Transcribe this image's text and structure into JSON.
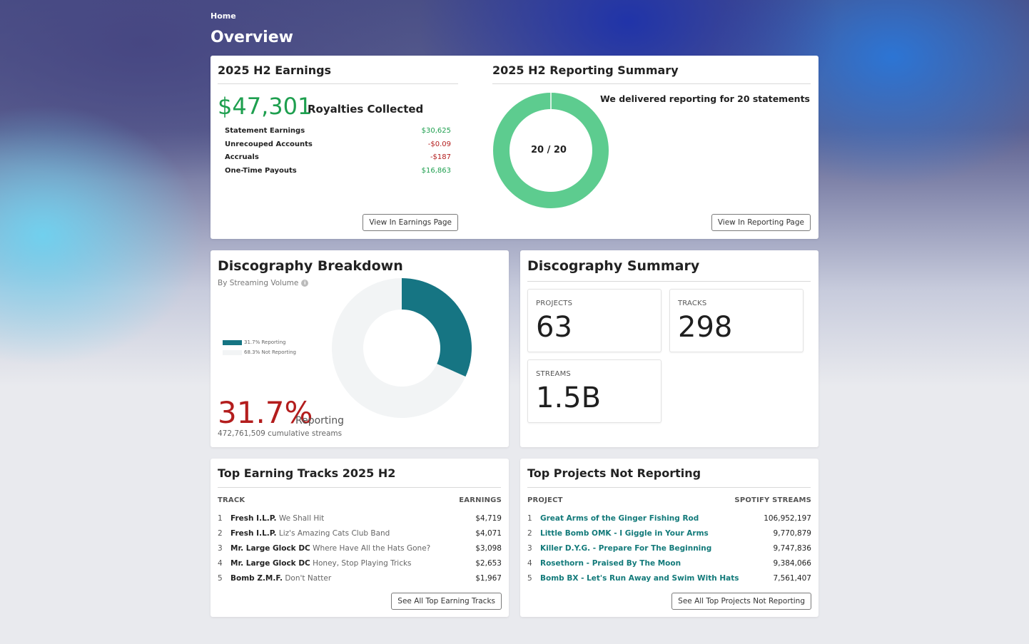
{
  "breadcrumb": "Home",
  "page_title": "Overview",
  "earnings": {
    "title": "2025 H2 Earnings",
    "total": "$47,301",
    "total_label": "Royalties Collected",
    "rows": [
      {
        "label": "Statement Earnings",
        "value": "$30,625",
        "tone": "pos"
      },
      {
        "label": "Unrecouped Accounts",
        "value": "-$0.09",
        "tone": "neg"
      },
      {
        "label": "Accruals",
        "value": "-$187",
        "tone": "neg"
      },
      {
        "label": "One-Time Payouts",
        "value": "$16,863",
        "tone": "pos"
      }
    ],
    "button": "View In Earnings Page"
  },
  "reporting": {
    "title": "2025 H2 Reporting Summary",
    "text_prefix": "We delivered reporting for ",
    "text_bold": "20 statements",
    "donut_label": "20 / 20",
    "delivered": 20,
    "total": 20,
    "color": "#5dcc8f",
    "button": "View In Reporting Page"
  },
  "breakdown": {
    "title": "Discography Breakdown",
    "subtitle": "By Streaming Volume",
    "legend": [
      {
        "label": "31.7% Reporting",
        "color": "#167583"
      },
      {
        "label": "68.3% Not Reporting",
        "color": "#f2f4f5"
      }
    ],
    "reporting_fraction": 0.317,
    "percent": "31.7%",
    "percent_label": "Reporting",
    "cumulative": "472,761,509 cumulative streams"
  },
  "summary": {
    "title": "Discography Summary",
    "stats": [
      {
        "label": "PROJECTS",
        "value": "63"
      },
      {
        "label": "TRACKS",
        "value": "298"
      },
      {
        "label": "STREAMS",
        "value": "1.5B"
      }
    ]
  },
  "top_tracks": {
    "title": "Top Earning Tracks 2025 H2",
    "col_left": "TRACK",
    "col_right": "EARNINGS",
    "rows": [
      {
        "n": "1",
        "artist": "Fresh I.L.P.",
        "title": "We Shall Hit",
        "value": "$4,719"
      },
      {
        "n": "2",
        "artist": "Fresh I.L.P.",
        "title": "Liz's Amazing Cats Club Band",
        "value": "$4,071"
      },
      {
        "n": "3",
        "artist": "Mr. Large Glock DC",
        "title": "Where Have All the Hats Gone?",
        "value": "$3,098"
      },
      {
        "n": "4",
        "artist": "Mr. Large Glock DC",
        "title": "Honey, Stop Playing Tricks",
        "value": "$2,653"
      },
      {
        "n": "5",
        "artist": "Bomb Z.M.F.",
        "title": "Don't Natter",
        "value": "$1,967"
      }
    ],
    "button": "See All Top Earning Tracks"
  },
  "top_projects": {
    "title": "Top Projects Not Reporting",
    "col_left": "PROJECT",
    "col_right": "SPOTIFY STREAMS",
    "rows": [
      {
        "n": "1",
        "name": "Great Arms of the Ginger Fishing Rod",
        "value": "106,952,197"
      },
      {
        "n": "2",
        "name": "Little Bomb OMK - I Giggle in Your Arms",
        "value": "9,770,879"
      },
      {
        "n": "3",
        "name": "Killer D.Y.G. - Prepare For The Beginning",
        "value": "9,747,836"
      },
      {
        "n": "4",
        "name": "Rosethorn - Praised By The Moon",
        "value": "9,384,066"
      },
      {
        "n": "5",
        "name": "Bomb BX - Let's Run Away and Swim With Hats",
        "value": "7,561,407"
      }
    ],
    "button": "See All Top Projects Not Reporting"
  }
}
